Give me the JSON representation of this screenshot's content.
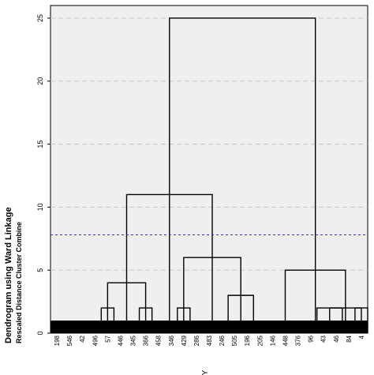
{
  "chart_data": {
    "type": "dendrogram",
    "ylabel": "Dendrogram using Ward Linkage",
    "ylabel_sub": "Rescaled Distance Cluster Combine",
    "xlabel": "Y",
    "ylim": [
      0,
      26
    ],
    "yticks": [
      0,
      5,
      10,
      15,
      20,
      25
    ],
    "grid": true,
    "cut_line": 7.8,
    "x_tick_labels": [
      "198",
      "546",
      "42",
      "496",
      "57",
      "446",
      "345",
      "366",
      "458",
      "346",
      "429",
      "286",
      "483",
      "246",
      "505",
      "196",
      "205",
      "146",
      "448",
      "376",
      "96",
      "43",
      "46",
      "84",
      "4"
    ],
    "bottom_bar_height": 1,
    "merges": [
      {
        "left": 4.5,
        "right": 5.5,
        "height": 2
      },
      {
        "left": 7.5,
        "right": 8.5,
        "height": 2
      },
      {
        "left": 5,
        "right": 8,
        "height": 4
      },
      {
        "left": 10.5,
        "right": 11.5,
        "height": 2
      },
      {
        "left": 14.5,
        "right": 16.5,
        "height": 3
      },
      {
        "left": 11,
        "right": 15.5,
        "height": 6
      },
      {
        "left": 6.5,
        "right": 13.25,
        "height": 11
      },
      {
        "left": 21.5,
        "right": 23.5,
        "height": 2
      },
      {
        "left": 24.5,
        "right": 25.5,
        "height": 2
      },
      {
        "left": 22.5,
        "right": 25,
        "height": 2
      },
      {
        "left": 19,
        "right": 23.75,
        "height": 5
      },
      {
        "left": 9.875,
        "right": 21.375,
        "height": 25
      }
    ]
  }
}
